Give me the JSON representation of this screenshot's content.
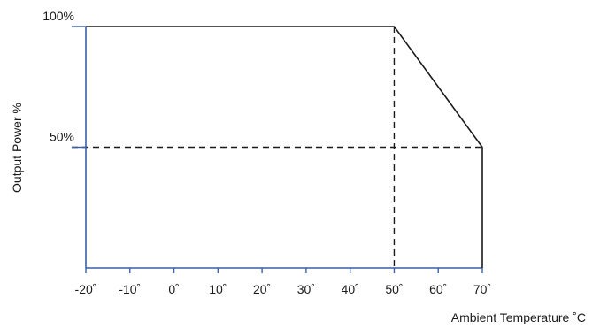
{
  "chart_data": {
    "type": "line",
    "title": "",
    "xlabel": "Ambient Temperature ˚C",
    "ylabel": "Output Power %",
    "xlim": [
      -20,
      70
    ],
    "ylim": [
      0,
      100
    ],
    "x_ticks": [
      -20,
      -10,
      0,
      10,
      20,
      30,
      40,
      50,
      60,
      70
    ],
    "x_tick_labels": [
      "-20˚",
      "-10˚",
      "0˚",
      "10˚",
      "20˚",
      "30˚",
      "40˚",
      "50˚",
      "60˚",
      "70˚"
    ],
    "y_ticks": [
      50,
      100
    ],
    "y_tick_labels": [
      "50%",
      "100%"
    ],
    "grid": false,
    "legend": "none",
    "series": [
      {
        "x": [
          -20,
          50,
          70,
          70
        ],
        "y": [
          100,
          100,
          50,
          0
        ],
        "color": "#1a1a1a"
      }
    ],
    "reference_lines": [
      {
        "orientation": "vertical",
        "x": 50,
        "style": "dashed"
      },
      {
        "orientation": "horizontal",
        "y": 50,
        "style": "dashed"
      }
    ],
    "axis_color": "#3a5fa8"
  }
}
